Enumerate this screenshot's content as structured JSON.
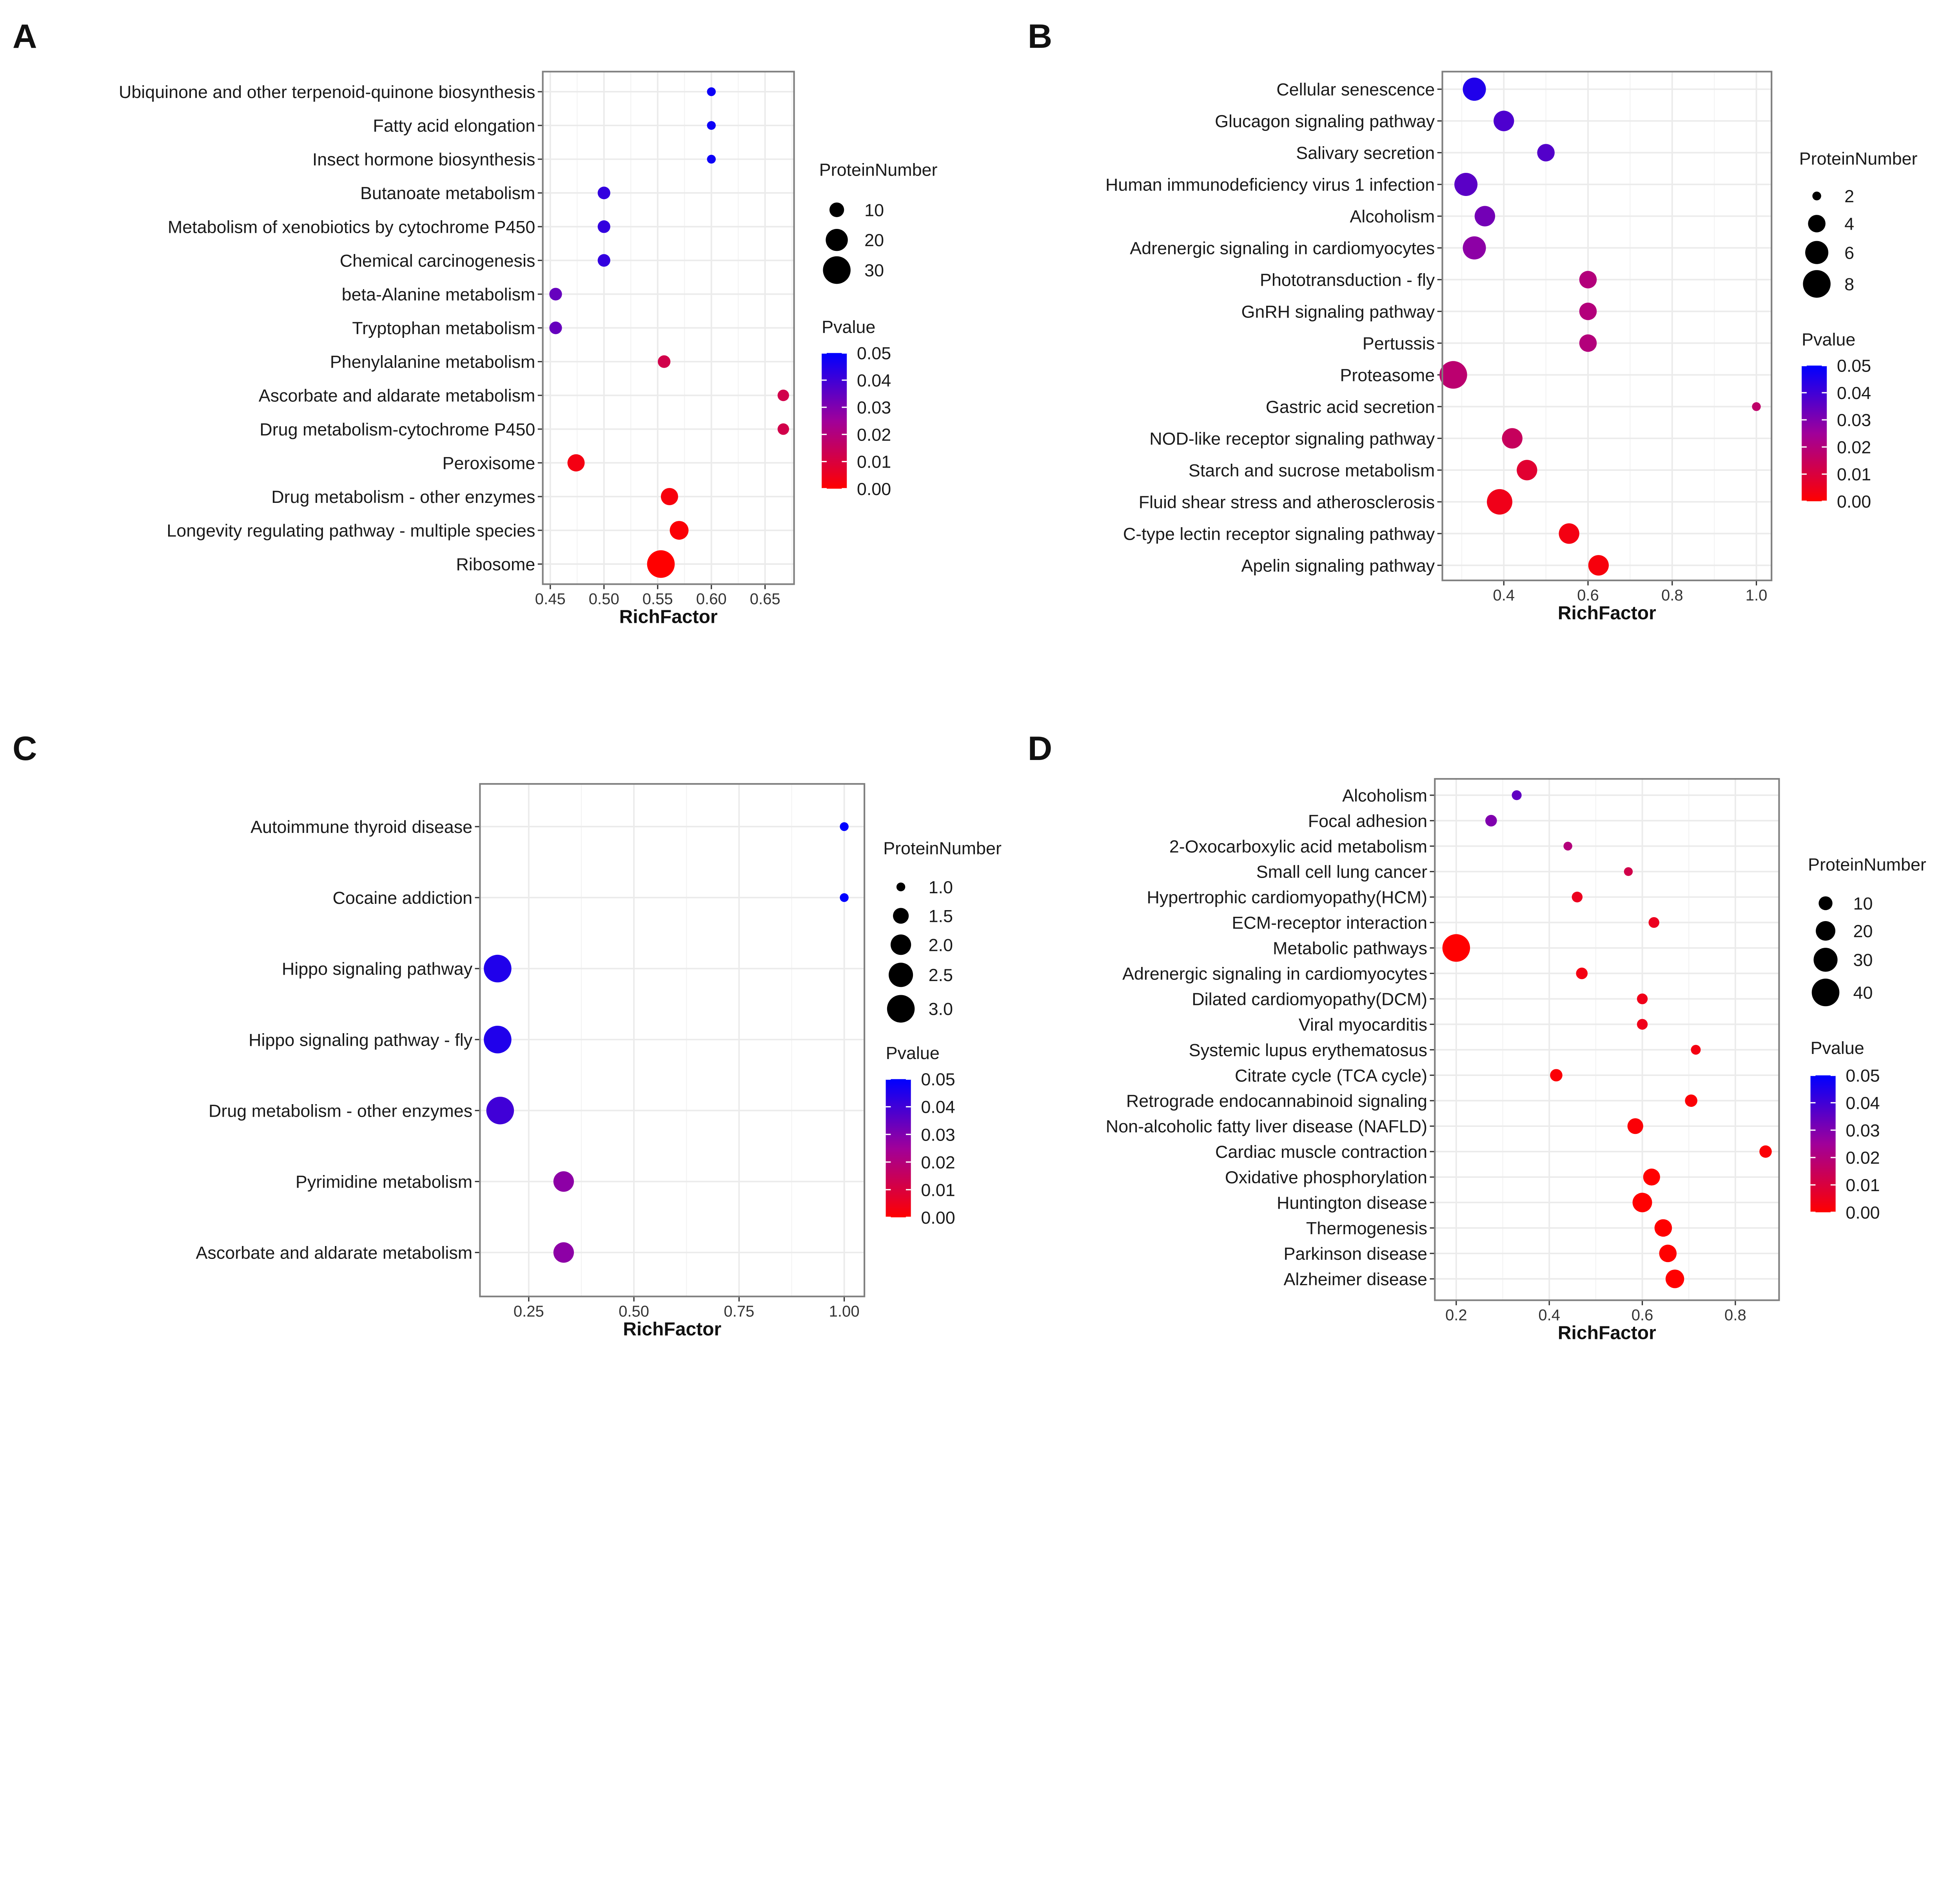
{
  "panel_labels": [
    "A",
    "B",
    "C",
    "D"
  ],
  "colors": {
    "low": "#ff0000",
    "high": "#0000ff",
    "grid": "#ebebeb",
    "border": "#7f7f7f"
  },
  "chart_data": [
    {
      "id": "A",
      "type": "scatter",
      "xlabel": "RichFactor",
      "xlim": [
        0.443,
        0.677
      ],
      "xticks": [
        0.45,
        0.5,
        0.55,
        0.6,
        0.65
      ],
      "xtick_labels": [
        "0.45",
        "0.50",
        "0.55",
        "0.60",
        "0.65"
      ],
      "size_title": "ProteinNumber",
      "size_breaks": [
        10,
        20,
        30
      ],
      "size_range": [
        5,
        30
      ],
      "color_title": "Pvalue",
      "color_breaks": [
        "0.05",
        "0.04",
        "0.03",
        "0.02",
        "0.01",
        "0.00"
      ],
      "color_range": [
        0,
        0.05
      ],
      "points": [
        {
          "term": "Ubiquinone and other terpenoid-quinone biosynthesis",
          "x": 0.6,
          "size": 5,
          "p": 0.048
        },
        {
          "term": "Fatty acid elongation",
          "x": 0.6,
          "size": 5,
          "p": 0.048
        },
        {
          "term": "Insect hormone biosynthesis",
          "x": 0.6,
          "size": 5,
          "p": 0.048
        },
        {
          "term": "Butanoate metabolism",
          "x": 0.5,
          "size": 8,
          "p": 0.042
        },
        {
          "term": "Metabolism of xenobiotics by cytochrome P450",
          "x": 0.5,
          "size": 8,
          "p": 0.042
        },
        {
          "term": "Chemical carcinogenesis",
          "x": 0.5,
          "size": 8,
          "p": 0.042
        },
        {
          "term": "beta-Alanine metabolism",
          "x": 0.455,
          "size": 8,
          "p": 0.034
        },
        {
          "term": "Tryptophan metabolism",
          "x": 0.455,
          "size": 8,
          "p": 0.034
        },
        {
          "term": "Phenylalanine metabolism",
          "x": 0.556,
          "size": 8,
          "p": 0.012
        },
        {
          "term": "Ascorbate and aldarate metabolism",
          "x": 0.667,
          "size": 7,
          "p": 0.012
        },
        {
          "term": "Drug metabolism-cytochrome P450",
          "x": 0.667,
          "size": 7,
          "p": 0.012
        },
        {
          "term": "Peroxisome",
          "x": 0.474,
          "size": 13,
          "p": 0.003
        },
        {
          "term": "Drug metabolism - other enzymes",
          "x": 0.561,
          "size": 13,
          "p": 0.002
        },
        {
          "term": "Longevity regulating pathway - multiple species",
          "x": 0.57,
          "size": 15,
          "p": 0.001
        },
        {
          "term": "Ribosome",
          "x": 0.553,
          "size": 30,
          "p": 0.0
        }
      ]
    },
    {
      "id": "B",
      "type": "scatter",
      "xlabel": "RichFactor",
      "xlim": [
        0.254,
        1.036
      ],
      "xticks": [
        0.4,
        0.6,
        0.8,
        1.0
      ],
      "xtick_labels": [
        "0.4",
        "0.6",
        "0.8",
        "1.0"
      ],
      "size_title": "ProteinNumber",
      "size_breaks": [
        2,
        4,
        6,
        8
      ],
      "size_range": [
        2,
        8
      ],
      "color_title": "Pvalue",
      "color_breaks": [
        "0.05",
        "0.04",
        "0.03",
        "0.02",
        "0.01",
        "0.00"
      ],
      "color_range": [
        0,
        0.05
      ],
      "points": [
        {
          "term": "Cellular senescence",
          "x": 0.33,
          "size": 6,
          "p": 0.045
        },
        {
          "term": "Glucagon signaling pathway",
          "x": 0.4,
          "size": 5,
          "p": 0.038
        },
        {
          "term": "Salivary secretion",
          "x": 0.5,
          "size": 4,
          "p": 0.037
        },
        {
          "term": "Human immunodeficiency virus 1 infection",
          "x": 0.31,
          "size": 6,
          "p": 0.036
        },
        {
          "term": "Alcoholism",
          "x": 0.355,
          "size": 5,
          "p": 0.032
        },
        {
          "term": "Adrenergic signaling in cardiomyocytes",
          "x": 0.33,
          "size": 6,
          "p": 0.028
        },
        {
          "term": "Phototransduction - fly",
          "x": 0.6,
          "size": 4,
          "p": 0.02
        },
        {
          "term": "GnRH signaling pathway",
          "x": 0.6,
          "size": 4,
          "p": 0.02
        },
        {
          "term": "Pertussis",
          "x": 0.6,
          "size": 4,
          "p": 0.02
        },
        {
          "term": "Proteasome",
          "x": 0.28,
          "size": 8,
          "p": 0.018
        },
        {
          "term": "Gastric acid secretion",
          "x": 1.0,
          "size": 2,
          "p": 0.017
        },
        {
          "term": "NOD-like receptor signaling pathway",
          "x": 0.42,
          "size": 5,
          "p": 0.015
        },
        {
          "term": "Starch and sucrose metabolism",
          "x": 0.455,
          "size": 5,
          "p": 0.008
        },
        {
          "term": "Fluid shear stress and atherosclerosis",
          "x": 0.39,
          "size": 7,
          "p": 0.004
        },
        {
          "term": "C-type lectin receptor signaling pathway",
          "x": 0.555,
          "size": 5,
          "p": 0.003
        },
        {
          "term": "Apelin signaling pathway",
          "x": 0.625,
          "size": 5,
          "p": 0.002
        }
      ]
    },
    {
      "id": "C",
      "type": "scatter",
      "xlabel": "RichFactor",
      "xlim": [
        0.134,
        1.048
      ],
      "xticks": [
        0.25,
        0.5,
        0.75,
        1.0
      ],
      "xtick_labels": [
        "0.25",
        "0.50",
        "0.75",
        "1.00"
      ],
      "size_title": "ProteinNumber",
      "size_breaks": [
        1.0,
        1.5,
        2.0,
        2.5,
        3.0
      ],
      "size_breaks_labels": [
        "1.0",
        "1.5",
        "2.0",
        "2.5",
        "3.0"
      ],
      "size_range": [
        1,
        3
      ],
      "color_title": "Pvalue",
      "color_breaks": [
        "0.05",
        "0.04",
        "0.03",
        "0.02",
        "0.01",
        "0.00"
      ],
      "color_range": [
        0,
        0.05
      ],
      "points": [
        {
          "term": "Autoimmune thyroid disease",
          "x": 1.0,
          "size": 1,
          "p": 0.05
        },
        {
          "term": "Cocaine addiction",
          "x": 1.0,
          "size": 1,
          "p": 0.05
        },
        {
          "term": "Hippo signaling pathway",
          "x": 0.176,
          "size": 3,
          "p": 0.045
        },
        {
          "term": "Hippo signaling pathway - fly",
          "x": 0.176,
          "size": 3,
          "p": 0.045
        },
        {
          "term": "Drug metabolism - other enzymes",
          "x": 0.182,
          "size": 3,
          "p": 0.04
        },
        {
          "term": "Pyrimidine metabolism",
          "x": 0.333,
          "size": 2,
          "p": 0.028
        },
        {
          "term": "Ascorbate and aldarate metabolism",
          "x": 0.333,
          "size": 2,
          "p": 0.028
        }
      ]
    },
    {
      "id": "D",
      "type": "scatter",
      "xlabel": "RichFactor",
      "xlim": [
        0.154,
        0.894
      ],
      "xticks": [
        0.2,
        0.4,
        0.6,
        0.8
      ],
      "xtick_labels": [
        "0.2",
        "0.4",
        "0.6",
        "0.8"
      ],
      "size_title": "ProteinNumber",
      "size_breaks": [
        10,
        20,
        30,
        40
      ],
      "size_range": [
        4,
        40
      ],
      "color_title": "Pvalue",
      "color_breaks": [
        "0.05",
        "0.04",
        "0.03",
        "0.02",
        "0.01",
        "0.00"
      ],
      "color_range": [
        0,
        0.05
      ],
      "points": [
        {
          "term": "Alcoholism",
          "x": 0.33,
          "size": 5,
          "p": 0.035
        },
        {
          "term": "Focal adhesion",
          "x": 0.275,
          "size": 7,
          "p": 0.03
        },
        {
          "term": "2-Oxocarboxylic acid metabolism",
          "x": 0.44,
          "size": 4,
          "p": 0.02
        },
        {
          "term": "Small cell lung cancer",
          "x": 0.57,
          "size": 4,
          "p": 0.012
        },
        {
          "term": "Hypertrophic cardiomyopathy(HCM)",
          "x": 0.46,
          "size": 6,
          "p": 0.005
        },
        {
          "term": "ECM-receptor interaction",
          "x": 0.625,
          "size": 6,
          "p": 0.005
        },
        {
          "term": "Metabolic pathways",
          "x": 0.2,
          "size": 40,
          "p": 0.0
        },
        {
          "term": "Adrenergic signaling in cardiomyocytes",
          "x": 0.47,
          "size": 7,
          "p": 0.003
        },
        {
          "term": "Dilated cardiomyopathy(DCM)",
          "x": 0.6,
          "size": 6,
          "p": 0.004
        },
        {
          "term": "Viral myocarditis",
          "x": 0.6,
          "size": 6,
          "p": 0.004
        },
        {
          "term": "Systemic lupus erythematosus",
          "x": 0.715,
          "size": 5,
          "p": 0.003
        },
        {
          "term": "Citrate cycle (TCA cycle)",
          "x": 0.415,
          "size": 8,
          "p": 0.001
        },
        {
          "term": "Retrograde endocannabinoid signaling",
          "x": 0.705,
          "size": 8,
          "p": 0.001
        },
        {
          "term": "Non-alcoholic fatty liver disease (NAFLD)",
          "x": 0.585,
          "size": 13,
          "p": 0.001
        },
        {
          "term": "Cardiac muscle contraction",
          "x": 0.865,
          "size": 8,
          "p": 0.001
        },
        {
          "term": "Oxidative phosphorylation",
          "x": 0.62,
          "size": 15,
          "p": 0.0
        },
        {
          "term": "Huntington disease",
          "x": 0.6,
          "size": 20,
          "p": 0.0
        },
        {
          "term": "Thermogenesis",
          "x": 0.645,
          "size": 16,
          "p": 0.0
        },
        {
          "term": "Parkinson disease",
          "x": 0.655,
          "size": 16,
          "p": 0.0
        },
        {
          "term": "Alzheimer disease",
          "x": 0.67,
          "size": 18,
          "p": 0.0
        }
      ]
    }
  ]
}
